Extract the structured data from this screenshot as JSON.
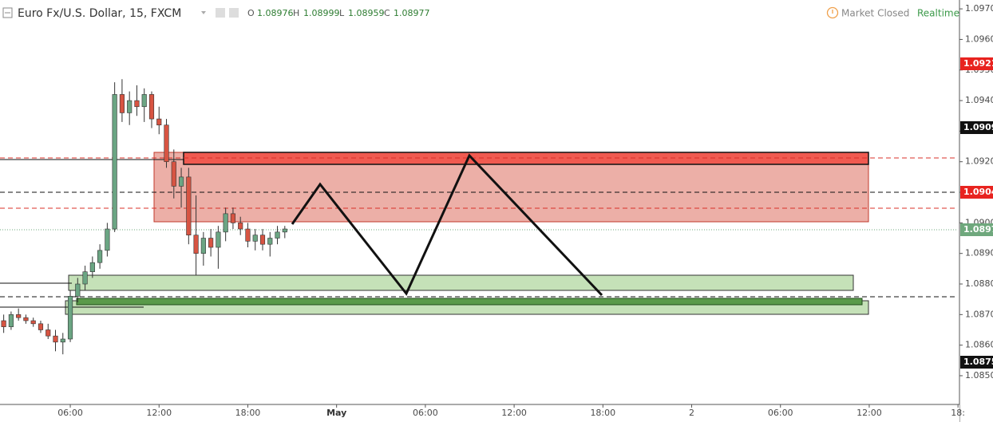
{
  "header": {
    "symbol": "Euro Fx/U.S. Dollar, 15, FXCM",
    "ohlc": [
      {
        "key": "O",
        "value": "1.08976"
      },
      {
        "key": "H",
        "value": "1.08999"
      },
      {
        "key": "L",
        "value": "1.08959"
      },
      {
        "key": "C",
        "value": "1.08977"
      }
    ],
    "status": "Market Closed",
    "feed": "Realtime"
  },
  "price_labels": [
    {
      "text": "1.0921",
      "color": "#e8231f"
    },
    {
      "text": "1.0909",
      "color": "#111111"
    },
    {
      "text": "1.0904",
      "color": "#e8231f"
    },
    {
      "text": "1.0897",
      "color": "#6fa87d"
    },
    {
      "text": "1.0875",
      "color": "#111111"
    }
  ],
  "chart_data": {
    "type": "candlestick",
    "x": [
      1.5,
      2,
      2.5,
      3,
      3.5,
      4,
      4.5,
      5,
      5.5,
      6,
      6.5,
      7,
      7.5,
      8,
      8.5,
      9,
      9.5,
      10,
      10.5,
      11,
      11.5,
      12,
      12.5,
      13,
      13.5,
      14,
      14.5,
      15,
      15.5,
      16,
      16.5,
      17,
      17.5,
      18,
      18.5,
      19,
      19.5,
      20,
      20.5
    ],
    "open": [
      1.0868,
      1.0866,
      1.087,
      1.0869,
      1.0868,
      1.0867,
      1.0865,
      1.0863,
      1.0861,
      1.0862,
      1.0876,
      1.088,
      1.0884,
      1.0887,
      1.0891,
      1.0898,
      1.0942,
      1.0936,
      1.094,
      1.0938,
      1.0942,
      1.0934,
      1.0932,
      1.092,
      1.0912,
      1.0915,
      1.0896,
      1.089,
      1.0895,
      1.0892,
      1.0897,
      1.0903,
      1.09,
      1.0898,
      1.0894,
      1.0896,
      1.0893,
      1.0895,
      1.0897
    ],
    "high": [
      1.087,
      1.0871,
      1.0872,
      1.087,
      1.0869,
      1.0868,
      1.0867,
      1.0865,
      1.0864,
      1.0878,
      1.0882,
      1.0886,
      1.0889,
      1.0893,
      1.09,
      1.0946,
      1.0947,
      1.0943,
      1.0945,
      1.0944,
      1.0943,
      1.0938,
      1.0934,
      1.0924,
      1.0918,
      1.0918,
      1.0909,
      1.0897,
      1.0898,
      1.0899,
      1.0905,
      1.0905,
      1.0902,
      1.09,
      1.0898,
      1.0898,
      1.0897,
      1.0899,
      1.0899
    ],
    "low": [
      1.0864,
      1.0865,
      1.0868,
      1.0867,
      1.0866,
      1.0864,
      1.0862,
      1.0858,
      1.0857,
      1.0861,
      1.0874,
      1.0878,
      1.0882,
      1.0885,
      1.0889,
      1.0897,
      1.0933,
      1.0932,
      1.0935,
      1.0933,
      1.0931,
      1.0929,
      1.0918,
      1.0908,
      1.0905,
      1.0893,
      1.0883,
      1.0886,
      1.0889,
      1.0885,
      1.0894,
      1.0898,
      1.0896,
      1.0892,
      1.0891,
      1.0891,
      1.0889,
      1.0893,
      1.0895
    ],
    "close": [
      1.0866,
      1.087,
      1.0869,
      1.0868,
      1.0867,
      1.0865,
      1.0863,
      1.0861,
      1.0862,
      1.0876,
      1.088,
      1.0884,
      1.0887,
      1.0891,
      1.0898,
      1.0942,
      1.0936,
      1.094,
      1.0938,
      1.0942,
      1.0934,
      1.0932,
      1.092,
      1.0912,
      1.0915,
      1.0896,
      1.089,
      1.0895,
      1.0892,
      1.0897,
      1.0903,
      1.09,
      1.0898,
      1.0894,
      1.0896,
      1.0893,
      1.0895,
      1.0897,
      1.0898
    ],
    "up_color": "#6ba583",
    "down_color": "#d75442",
    "xlim": [
      1.25,
      66.1
    ],
    "xticks": [
      {
        "value": 6,
        "label": "06:00"
      },
      {
        "value": 12,
        "label": "12:00"
      },
      {
        "value": 18,
        "label": "18:00"
      },
      {
        "value": 24,
        "label": "May"
      },
      {
        "value": 30,
        "label": "06:00"
      },
      {
        "value": 36,
        "label": "12:00"
      },
      {
        "value": 42,
        "label": "18:00"
      },
      {
        "value": 48,
        "label": "2"
      },
      {
        "value": 54,
        "label": "06:00"
      },
      {
        "value": 60,
        "label": "12:00"
      },
      {
        "value": 66,
        "label": "18:"
      }
    ],
    "ylim": [
      1.08406,
      1.09729
    ],
    "yticks": [
      {
        "value": 1.097,
        "label": "1.0970"
      },
      {
        "value": 1.096,
        "label": "1.0960"
      },
      {
        "value": 1.095,
        "label": "1.0950"
      },
      {
        "value": 1.094,
        "label": "1.0940"
      },
      {
        "value": 1.093,
        "label": "1.0930"
      },
      {
        "value": 1.092,
        "label": "1.0920"
      },
      {
        "value": 1.091,
        "label": "1.0910"
      },
      {
        "value": 1.09,
        "label": "1.0900"
      },
      {
        "value": 1.089,
        "label": "1.0890"
      },
      {
        "value": 1.088,
        "label": "1.0880"
      },
      {
        "value": 1.087,
        "label": "1.0870"
      },
      {
        "value": 1.086,
        "label": "1.0860"
      },
      {
        "value": 1.085,
        "label": "1.0850"
      }
    ]
  }
}
